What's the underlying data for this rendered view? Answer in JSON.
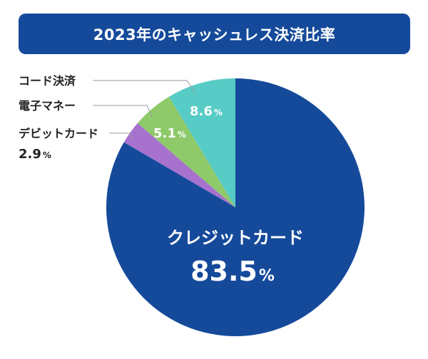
{
  "title": "2023年のキャッシュレス決済比率",
  "chart_data": {
    "type": "pie",
    "title": "2023年のキャッシュレス決済比率",
    "unit": "%",
    "slices": [
      {
        "label": "クレジットカード",
        "value": 83.5,
        "color": "#154a9b"
      },
      {
        "label": "デビットカード",
        "value": 2.9,
        "color": "#a772ce"
      },
      {
        "label": "電子マネー",
        "value": 5.1,
        "color": "#8ec96a"
      },
      {
        "label": "コード決済",
        "value": 8.6,
        "color": "#57cbc5"
      }
    ]
  }
}
